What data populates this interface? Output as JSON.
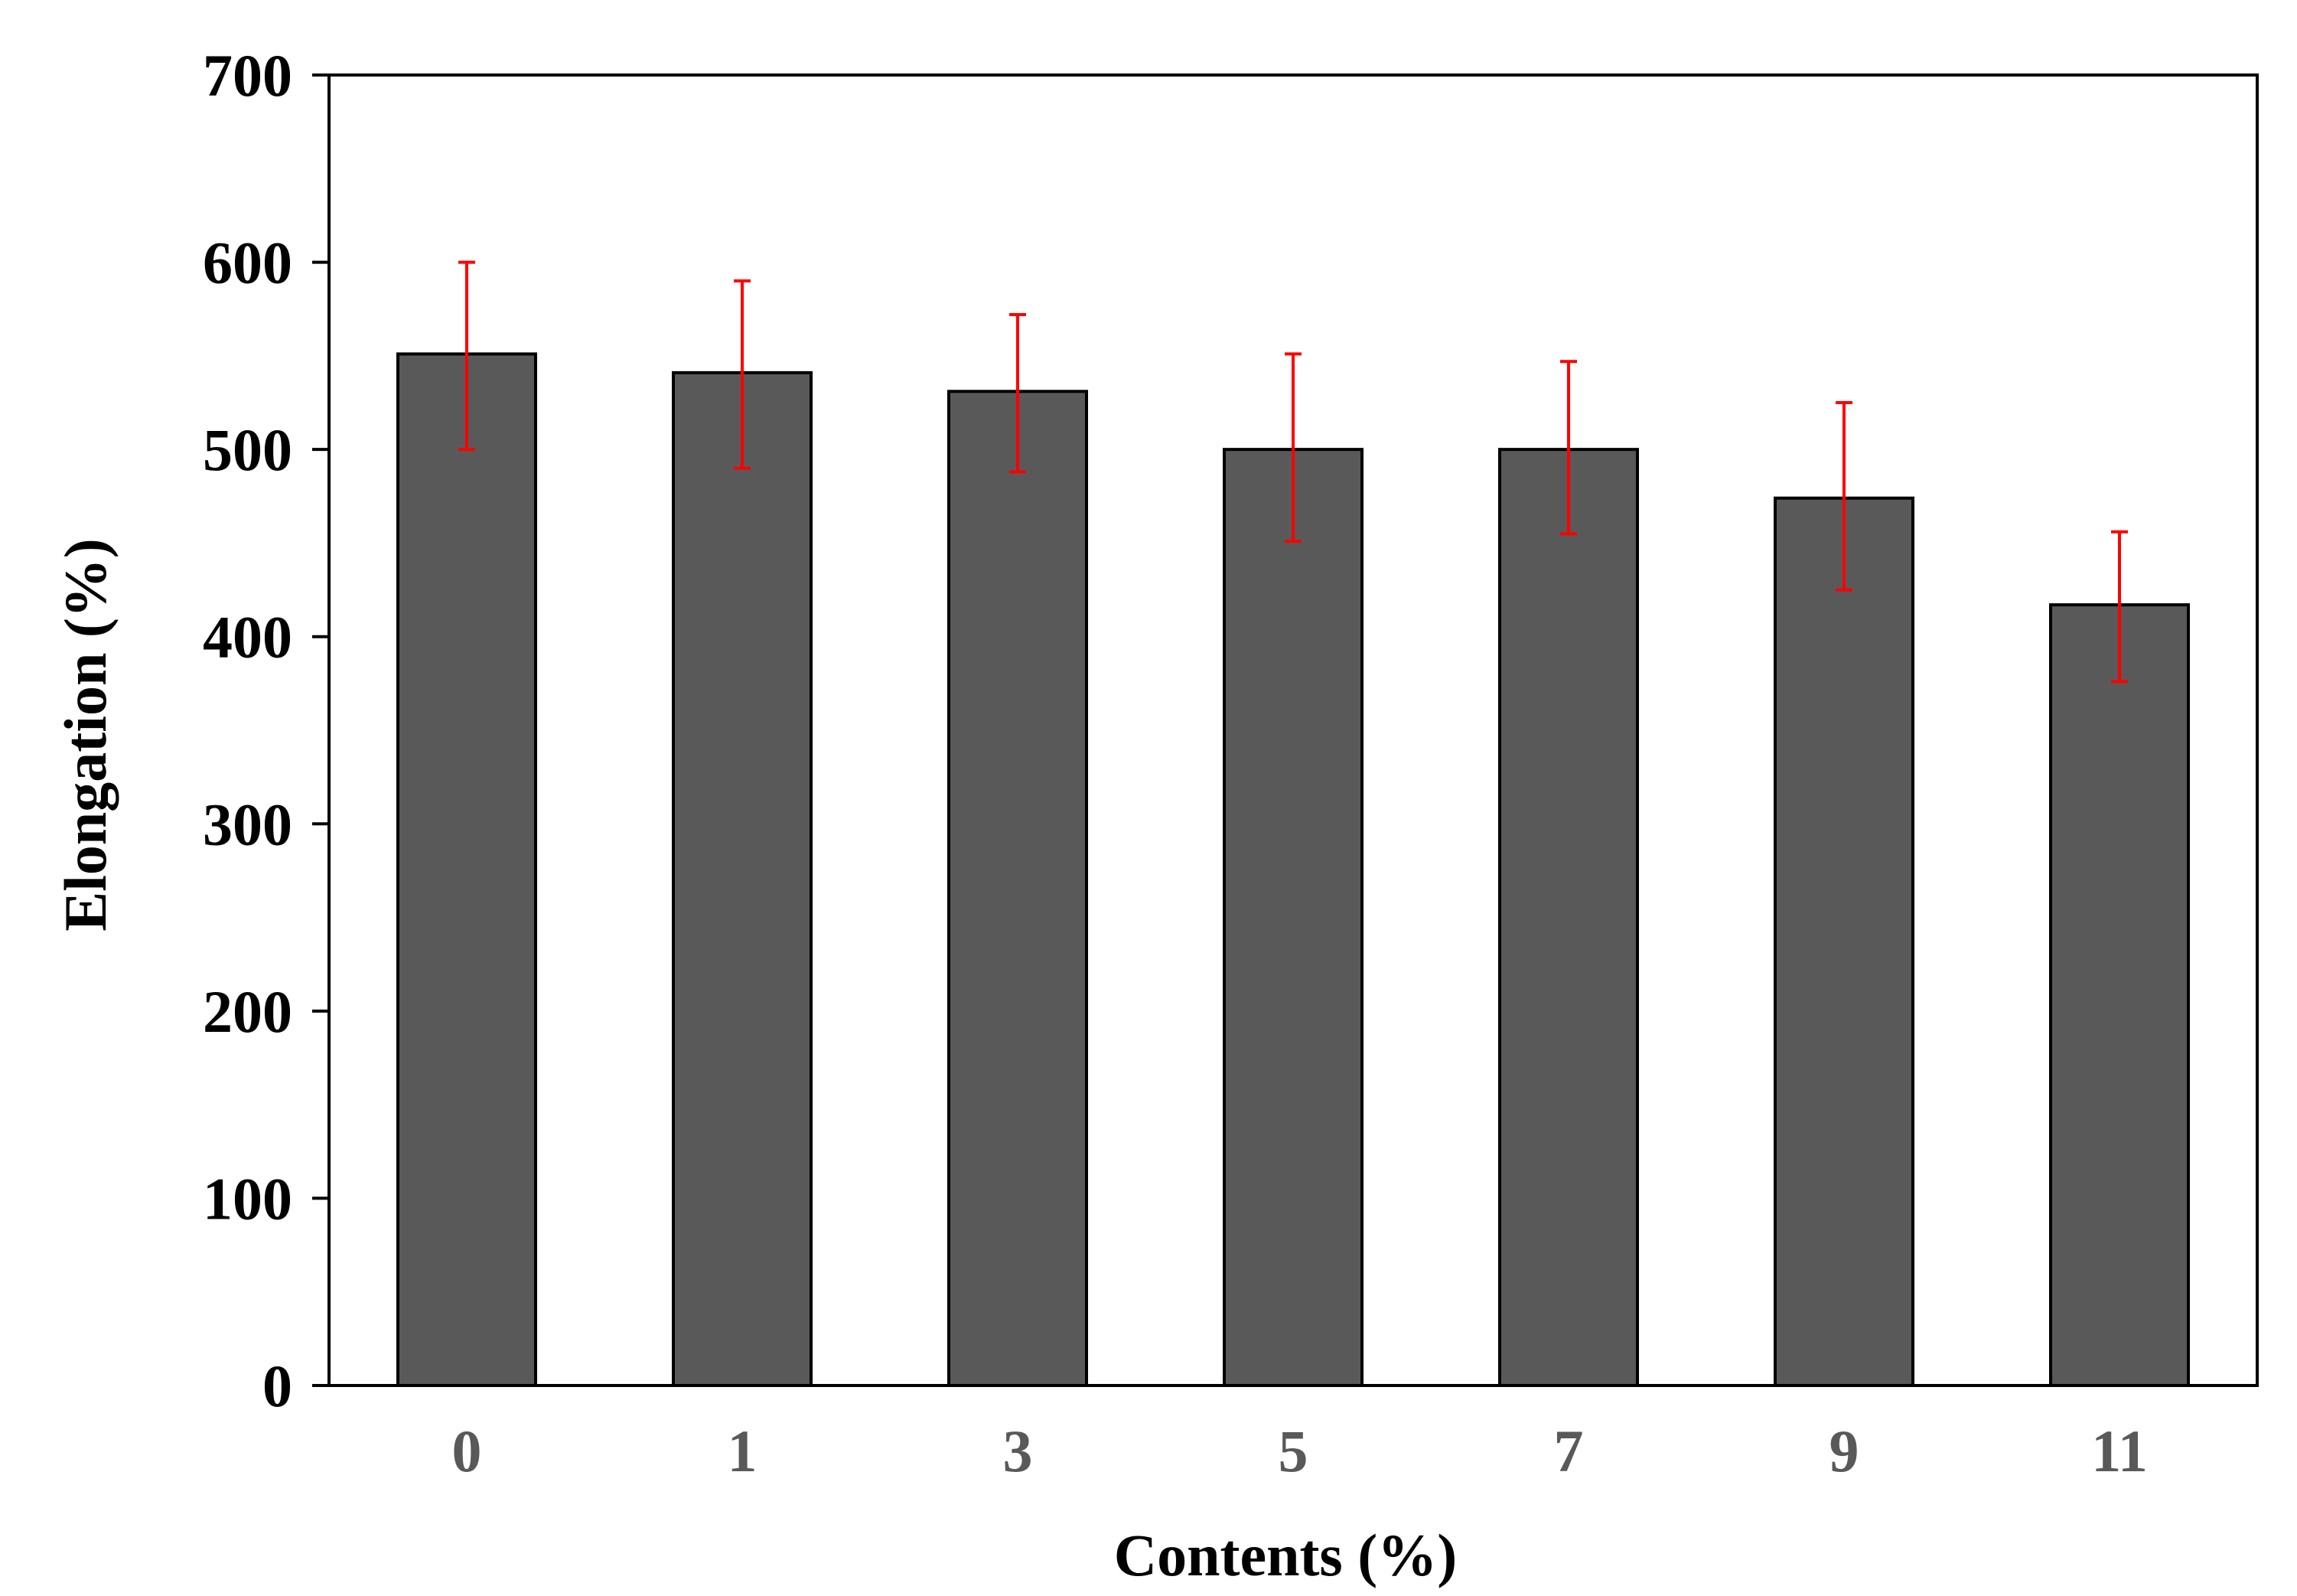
{
  "chart_data": {
    "type": "bar",
    "title": "",
    "xlabel": "Contents (%)",
    "ylabel": "Elongation (%)",
    "categories": [
      "0",
      "1",
      "3",
      "5",
      "7",
      "9",
      "11"
    ],
    "values": [
      551,
      541,
      531,
      500,
      500,
      474,
      417
    ],
    "error_low": [
      500,
      490,
      488,
      451,
      455,
      425,
      376
    ],
    "error_high": [
      600,
      590,
      572,
      551,
      547,
      525,
      456
    ],
    "ylim": [
      0,
      700
    ],
    "yticks": [
      0,
      100,
      200,
      300,
      400,
      500,
      600,
      700
    ],
    "grid": false,
    "legend": "none",
    "colors": {
      "bar_fill": "#595959",
      "bar_stroke": "#000000",
      "error_bar": "#ff0000",
      "axis": "#000000",
      "x_tick_text": "#595959",
      "y_tick_text": "#000000"
    }
  }
}
